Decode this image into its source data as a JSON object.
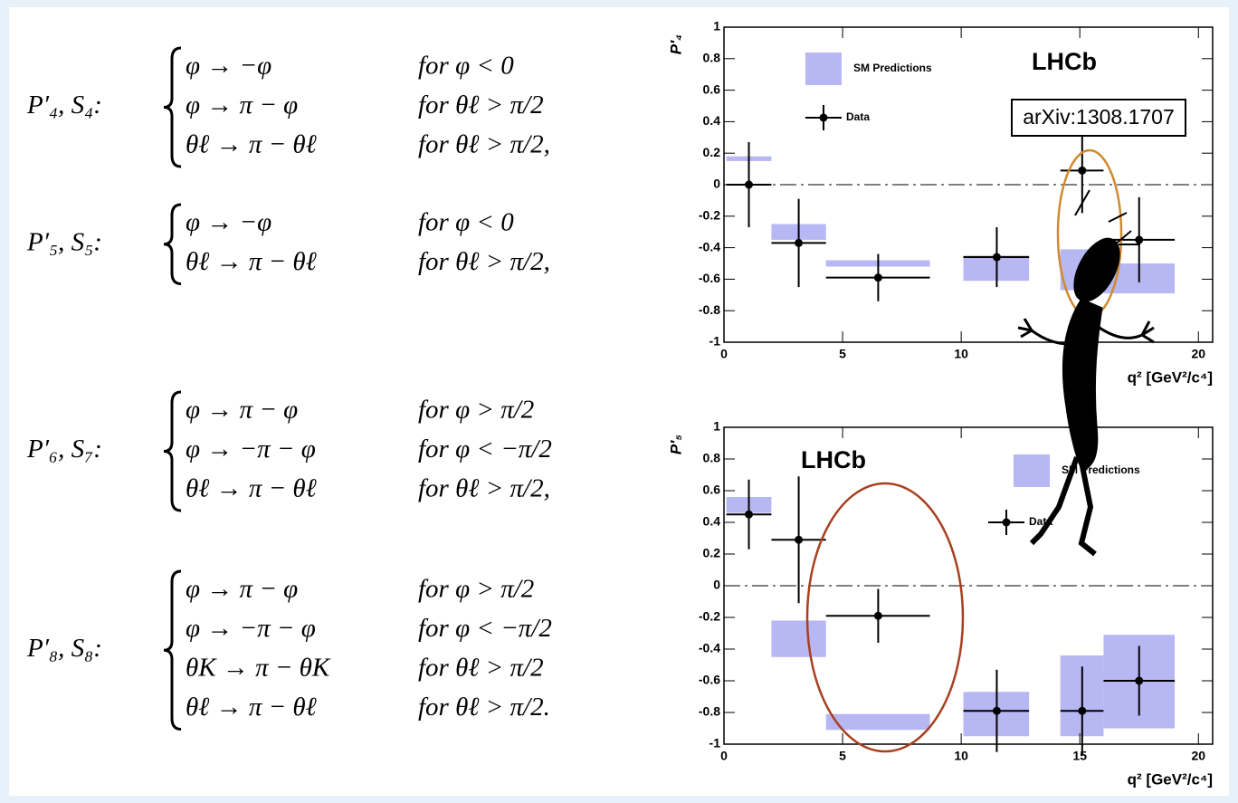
{
  "equations": [
    {
      "label": "P′₄, S₄:",
      "cases": [
        [
          "φ → −φ",
          "for φ < 0"
        ],
        [
          "φ → π − φ",
          "for θℓ > π/2"
        ],
        [
          "θℓ → π − θℓ",
          "for θℓ > π/2,"
        ]
      ]
    },
    {
      "label": "P′₅, S₅:",
      "cases": [
        [
          "φ → −φ",
          "for φ < 0"
        ],
        [
          "θℓ → π − θℓ",
          "for θℓ > π/2,"
        ]
      ]
    },
    {
      "label": "P′₆, S₇:",
      "cases": [
        [
          "φ → π − φ",
          "for φ > π/2"
        ],
        [
          "φ → −π − φ",
          "for φ < −π/2"
        ],
        [
          "θℓ → π − θℓ",
          "for θℓ > π/2,"
        ]
      ]
    },
    {
      "label": "P′₈, S₈:",
      "cases": [
        [
          "φ → π − φ",
          "for φ > π/2"
        ],
        [
          "φ → −π − φ",
          "for φ < −π/2"
        ],
        [
          "θK → π − θK",
          "for θℓ > π/2"
        ],
        [
          "θℓ → π − θℓ",
          "for θℓ > π/2."
        ]
      ]
    }
  ],
  "chart_data": [
    {
      "type": "errorbar",
      "ylabel": "P′₄",
      "xlabel": "q² [GeV²/c⁴]",
      "watermark": "LHCb",
      "annotation": "arXiv:1308.1707",
      "xlim": [
        0,
        20.6
      ],
      "ylim": [
        -1,
        1
      ],
      "xticks": [
        0,
        5,
        10,
        15,
        20
      ],
      "yticks": [
        -1,
        -0.8,
        -0.6,
        -0.4,
        -0.2,
        0,
        0.2,
        0.4,
        0.6,
        0.8,
        1
      ],
      "x_low": [
        0.1,
        2,
        4.3,
        10.09,
        14.18,
        16
      ],
      "x_high": [
        2,
        4.3,
        8.68,
        12.86,
        16,
        19
      ],
      "bands": {
        "name": "SM Predictions",
        "color": "#b7b7f3",
        "low": [
          0.15,
          -0.35,
          -0.52,
          -0.61,
          -0.67,
          -0.69
        ],
        "high": [
          0.18,
          -0.25,
          -0.48,
          -0.45,
          -0.41,
          -0.5
        ]
      },
      "points": {
        "name": "Data",
        "color": "#000000",
        "x": [
          1.05,
          3.15,
          6.5,
          11.5,
          15.1,
          17.5
        ],
        "values": [
          0.0,
          -0.37,
          -0.59,
          -0.46,
          0.09,
          -0.35
        ],
        "errors": [
          0.27,
          0.28,
          0.15,
          0.19,
          0.27,
          0.27
        ]
      }
    },
    {
      "type": "errorbar",
      "ylabel": "P′₅",
      "xlabel": "q² [GeV²/c⁴]",
      "watermark": "LHCb",
      "xlim": [
        0,
        20.6
      ],
      "ylim": [
        -1,
        1
      ],
      "xticks": [
        0,
        5,
        10,
        15,
        20
      ],
      "yticks": [
        -1,
        -0.8,
        -0.6,
        -0.4,
        -0.2,
        0,
        0.2,
        0.4,
        0.6,
        0.8,
        1
      ],
      "x_low": [
        0.1,
        2,
        4.3,
        10.09,
        14.18,
        16
      ],
      "x_high": [
        2,
        4.3,
        8.68,
        12.86,
        16,
        19
      ],
      "bands": {
        "name": "SM Predictions",
        "color": "#b7b7f3",
        "low": [
          0.46,
          -0.45,
          -0.91,
          -0.95,
          -0.95,
          -0.9
        ],
        "high": [
          0.56,
          -0.22,
          -0.81,
          -0.67,
          -0.44,
          -0.31
        ]
      },
      "points": {
        "name": "Data",
        "color": "#000000",
        "x": [
          1.05,
          3.15,
          6.5,
          11.5,
          15.1,
          17.5
        ],
        "values": [
          0.45,
          0.29,
          -0.19,
          -0.79,
          -0.79,
          -0.6
        ],
        "errors": [
          0.22,
          0.4,
          0.17,
          0.26,
          0.28,
          0.22
        ]
      }
    }
  ]
}
